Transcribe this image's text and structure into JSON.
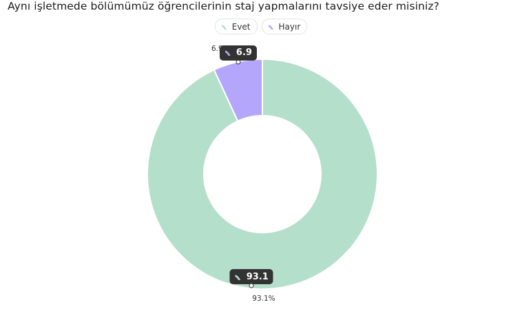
{
  "chart_data": {
    "type": "pie",
    "title": "Aynı işletmede bölümümüz öğrencilerinin staj yapmalarını tavsiye eder misiniz?",
    "legend_position": "top-center",
    "series": [
      {
        "name": "Evet",
        "value": 93.1,
        "label": "93.1",
        "percent_label": "93.1%",
        "color": "#b3dfcb"
      },
      {
        "name": "Hayır",
        "value": 6.9,
        "label": "6.9",
        "percent_label": "6.9%",
        "color": "#b3a6fb"
      }
    ]
  }
}
